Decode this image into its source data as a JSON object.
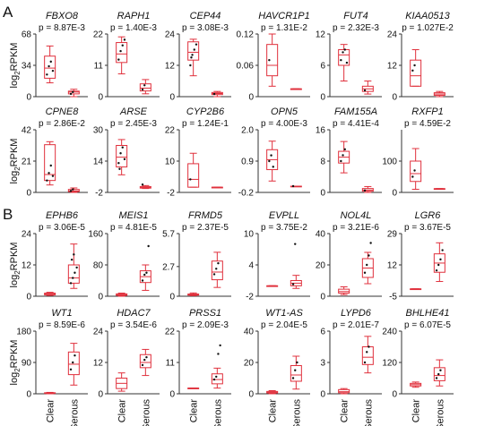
{
  "figure": {
    "panel_labels": [
      "A",
      "B"
    ],
    "ylabel": "log2RPKM",
    "ylabel_base": "log",
    "ylabel_sub": "2",
    "ylabel_tail": "RPKM",
    "group_labels": [
      "Clear",
      "Serous"
    ],
    "box_color": "#e0303c",
    "point_color": "#111111",
    "text_color": "#111111"
  },
  "chart_data": [
    {
      "type": "box",
      "gene": "FBXO8",
      "pvalue": "p = 8.87E-3",
      "ylim": [
        0,
        68
      ],
      "yticks": [
        "68",
        "34",
        "0"
      ],
      "boxes": [
        {
          "group": "Clear",
          "whisker_low": 15,
          "q1": 20,
          "median": 31,
          "q3": 44,
          "whisker_high": 55,
          "points": [
            24,
            33,
            38,
            28
          ]
        },
        {
          "group": "Serous",
          "whisker_low": 0,
          "q1": 3,
          "median": 5,
          "q3": 6,
          "whisker_high": 8,
          "points": [
            3,
            5
          ]
        }
      ]
    },
    {
      "type": "box",
      "gene": "RAPH1",
      "pvalue": "p = 1.40E-3",
      "ylim": [
        0,
        22
      ],
      "yticks": [
        "22",
        "11",
        "0"
      ],
      "boxes": [
        {
          "group": "Clear",
          "whisker_low": 8,
          "q1": 12,
          "median": 15,
          "q3": 19,
          "whisker_high": 21,
          "points": [
            13,
            16,
            18,
            20
          ]
        },
        {
          "group": "Serous",
          "whisker_low": 1,
          "q1": 2,
          "median": 3,
          "q3": 4.5,
          "whisker_high": 6,
          "points": [
            2.5,
            4
          ]
        }
      ]
    },
    {
      "type": "box",
      "gene": "CEP44",
      "pvalue": "p = 3.08E-3",
      "ylim": [
        0,
        24
      ],
      "yticks": [
        "24",
        "12",
        "0"
      ],
      "boxes": [
        {
          "group": "Clear",
          "whisker_low": 8,
          "q1": 14,
          "median": 17,
          "q3": 21,
          "whisker_high": 22,
          "points": [
            12,
            16,
            18,
            20,
            15
          ]
        },
        {
          "group": "Serous",
          "whisker_low": 0,
          "q1": 0.8,
          "median": 1.2,
          "q3": 1.6,
          "whisker_high": 2,
          "points": [
            1
          ]
        }
      ]
    },
    {
      "type": "box",
      "gene": "HAVCR1P1",
      "pvalue": "p = 1.31E-2",
      "ylim": [
        0,
        0.12
      ],
      "yticks": [
        "0.12",
        "0.06",
        "0"
      ],
      "boxes": [
        {
          "group": "Clear",
          "whisker_low": 0.02,
          "q1": 0.04,
          "median": 0.06,
          "q3": 0.1,
          "whisker_high": 0.12,
          "points": [
            0.07
          ]
        },
        {
          "group": "Serous",
          "whisker_low": 0.015,
          "q1": 0.015,
          "median": 0.015,
          "q3": 0.015,
          "whisker_high": 0.015,
          "points": []
        }
      ]
    },
    {
      "type": "box",
      "gene": "FUT4",
      "pvalue": "p = 2.32E-3",
      "ylim": [
        0,
        12
      ],
      "yticks": [
        "12",
        "6",
        "0"
      ],
      "boxes": [
        {
          "group": "Clear",
          "whisker_low": 3,
          "q1": 6,
          "median": 8,
          "q3": 9,
          "whisker_high": 10,
          "points": [
            7,
            8.5,
            9,
            6.5
          ]
        },
        {
          "group": "Serous",
          "whisker_low": 0.5,
          "q1": 1,
          "median": 1.5,
          "q3": 2,
          "whisker_high": 3,
          "points": [
            1.2
          ]
        }
      ]
    },
    {
      "type": "box",
      "gene": "KIAA0513",
      "pvalue": "p = 1.027E-2",
      "ylim": [
        0,
        24
      ],
      "yticks": [
        "24",
        "12",
        "0"
      ],
      "boxes": [
        {
          "group": "Clear",
          "whisker_low": 4,
          "q1": 4,
          "median": 8,
          "q3": 14,
          "whisker_high": 18,
          "points": [
            10,
            12
          ]
        },
        {
          "group": "Serous",
          "whisker_low": 0,
          "q1": 0.5,
          "median": 1,
          "q3": 1.5,
          "whisker_high": 2,
          "points": []
        }
      ]
    },
    {
      "type": "box",
      "gene": "CPNE8",
      "pvalue": "p = 2.86E-2",
      "ylim": [
        0,
        42
      ],
      "yticks": [
        "42",
        "21",
        "0"
      ],
      "boxes": [
        {
          "group": "Clear",
          "whisker_low": 5,
          "q1": 8,
          "median": 12,
          "q3": 32,
          "whisker_high": 34,
          "points": [
            8,
            13,
            18,
            11
          ]
        },
        {
          "group": "Serous",
          "whisker_low": 0,
          "q1": 0.5,
          "median": 1,
          "q3": 2,
          "whisker_high": 3,
          "points": [
            1,
            2
          ]
        }
      ]
    },
    {
      "type": "box",
      "gene": "ARSE",
      "pvalue": "p = 2.45E-3",
      "ylim": [
        -2,
        30
      ],
      "yticks": [
        "30",
        "14",
        "-2"
      ],
      "boxes": [
        {
          "group": "Clear",
          "whisker_low": 7,
          "q1": 11,
          "median": 16,
          "q3": 22,
          "whisker_high": 25,
          "points": [
            13,
            18,
            21,
            15,
            10
          ]
        },
        {
          "group": "Serous",
          "whisker_low": 0,
          "q1": 0.2,
          "median": 0.5,
          "q3": 1,
          "whisker_high": 1.5,
          "points": [
            2
          ]
        }
      ]
    },
    {
      "type": "box",
      "gene": "CYP2B6",
      "pvalue": "p = 1.24E-1",
      "ylim": [
        -2,
        22
      ],
      "yticks": [
        "22",
        "10",
        "-2"
      ],
      "boxes": [
        {
          "group": "Clear",
          "whisker_low": 0,
          "q1": 0,
          "median": 3,
          "q3": 9,
          "whisker_high": 13,
          "points": [
            3
          ]
        },
        {
          "group": "Serous",
          "whisker_low": 0,
          "q1": 0,
          "median": 0,
          "q3": 0,
          "whisker_high": 0,
          "points": []
        }
      ]
    },
    {
      "type": "box",
      "gene": "OPN5",
      "pvalue": "p = 4.00E-3",
      "ylim": [
        -0.2,
        2.0
      ],
      "yticks": [
        "2.0",
        "0.9",
        "-0.2"
      ],
      "boxes": [
        {
          "group": "Clear",
          "whisker_low": 0.2,
          "q1": 0.6,
          "median": 0.95,
          "q3": 1.3,
          "whisker_high": 1.6,
          "points": [
            0.9,
            1.1,
            0.7
          ]
        },
        {
          "group": "Serous",
          "whisker_low": 0.02,
          "q1": 0.02,
          "median": 0.02,
          "q3": 0.02,
          "whisker_high": 0.02,
          "points": [
            0.02
          ]
        }
      ]
    },
    {
      "type": "box",
      "gene": "FAM155A",
      "pvalue": "p = 4.41E-4",
      "ylim": [
        0,
        16
      ],
      "yticks": [
        "16",
        "8",
        "0"
      ],
      "boxes": [
        {
          "group": "Clear",
          "whisker_low": 5,
          "q1": 7.5,
          "median": 9,
          "q3": 10.5,
          "whisker_high": 13,
          "points": [
            8,
            9.5,
            11
          ]
        },
        {
          "group": "Serous",
          "whisker_low": 0,
          "q1": 0.3,
          "median": 0.6,
          "q3": 1,
          "whisker_high": 1.5,
          "points": [
            0.5
          ]
        }
      ]
    },
    {
      "type": "box",
      "gene": "RXFP1",
      "pvalue": "p = 4.59E-2",
      "ylim": [
        0,
        200
      ],
      "yticks": [
        "100",
        "0"
      ],
      "boxes": [
        {
          "group": "Clear",
          "whisker_low": 10,
          "q1": 35,
          "median": 60,
          "q3": 100,
          "whisker_high": 140,
          "points": [
            50,
            70
          ]
        },
        {
          "group": "Serous",
          "whisker_low": 12,
          "q1": 12,
          "median": 12,
          "q3": 12,
          "whisker_high": 12,
          "points": []
        }
      ]
    },
    {
      "type": "box",
      "gene": "EPHB6",
      "pvalue": "p = 3.06E-5",
      "ylim": [
        0,
        24
      ],
      "yticks": [
        "24",
        "12",
        "0"
      ],
      "boxes": [
        {
          "group": "Clear",
          "whisker_low": 0.3,
          "q1": 0.5,
          "median": 0.8,
          "q3": 1.2,
          "whisker_high": 1.5,
          "points": []
        },
        {
          "group": "Serous",
          "whisker_low": 3,
          "q1": 5,
          "median": 7,
          "q3": 12,
          "whisker_high": 20,
          "points": [
            5,
            7,
            9,
            11,
            14,
            16
          ]
        }
      ]
    },
    {
      "type": "box",
      "gene": "MEIS1",
      "pvalue": "p = 4.81E-5",
      "ylim": [
        0,
        160
      ],
      "yticks": [
        "160",
        "80",
        "0"
      ],
      "boxes": [
        {
          "group": "Clear",
          "whisker_low": 0,
          "q1": 2,
          "median": 4,
          "q3": 6,
          "whisker_high": 8,
          "points": []
        },
        {
          "group": "Serous",
          "whisker_low": 15,
          "q1": 35,
          "median": 50,
          "q3": 65,
          "whisker_high": 80,
          "points": [
            40,
            55,
            60,
            128
          ]
        }
      ]
    },
    {
      "type": "box",
      "gene": "FRMD5",
      "pvalue": "p = 2.37E-5",
      "ylim": [
        0,
        5.7
      ],
      "yticks": [
        "5.7",
        "2.7",
        "0"
      ],
      "boxes": [
        {
          "group": "Clear",
          "whisker_low": 0.05,
          "q1": 0.1,
          "median": 0.15,
          "q3": 0.2,
          "whisker_high": 0.3,
          "points": []
        },
        {
          "group": "Serous",
          "whisker_low": 0.8,
          "q1": 1.5,
          "median": 2.2,
          "q3": 3.2,
          "whisker_high": 4,
          "points": [
            2,
            2.5,
            3
          ]
        }
      ]
    },
    {
      "type": "box",
      "gene": "EVPLL",
      "pvalue": "p = 3.75E-2",
      "ylim": [
        -2,
        10
      ],
      "yticks": [
        "10",
        "4",
        "-2"
      ],
      "boxes": [
        {
          "group": "Clear",
          "whisker_low": 0,
          "q1": 0,
          "median": 0,
          "q3": 0,
          "whisker_high": 0,
          "points": []
        },
        {
          "group": "Serous",
          "whisker_low": -0.5,
          "q1": 0,
          "median": 0.5,
          "q3": 1,
          "whisker_high": 2,
          "points": [
            0.3,
            8
          ]
        }
      ]
    },
    {
      "type": "box",
      "gene": "NOL4L",
      "pvalue": "p = 3.21E-6",
      "ylim": [
        0,
        40
      ],
      "yticks": [
        "40",
        "20",
        "0"
      ],
      "boxes": [
        {
          "group": "Clear",
          "whisker_low": 1,
          "q1": 2,
          "median": 3,
          "q3": 4.5,
          "whisker_high": 6,
          "points": []
        },
        {
          "group": "Serous",
          "whisker_low": 8,
          "q1": 12,
          "median": 18,
          "q3": 24,
          "whisker_high": 28,
          "points": [
            15,
            20,
            26,
            34
          ]
        }
      ]
    },
    {
      "type": "box",
      "gene": "LGR6",
      "pvalue": "p = 3.67E-5",
      "ylim": [
        -5,
        29
      ],
      "yticks": [
        "29",
        "12",
        "-5"
      ],
      "boxes": [
        {
          "group": "Clear",
          "whisker_low": -1,
          "q1": -1,
          "median": -1,
          "q3": -1,
          "whisker_high": -1,
          "points": []
        },
        {
          "group": "Serous",
          "whisker_low": 3,
          "q1": 8,
          "median": 13,
          "q3": 18,
          "whisker_high": 24,
          "points": [
            9,
            12,
            15,
            20
          ]
        }
      ]
    },
    {
      "type": "box",
      "gene": "WT1",
      "pvalue": "p = 8.59E-6",
      "ylim": [
        0,
        180
      ],
      "yticks": [
        "180",
        "90",
        "0"
      ],
      "boxes": [
        {
          "group": "Clear",
          "whisker_low": 0,
          "q1": 1,
          "median": 2,
          "q3": 3,
          "whisker_high": 4,
          "points": []
        },
        {
          "group": "Serous",
          "whisker_low": 25,
          "q1": 55,
          "median": 85,
          "q3": 120,
          "whisker_high": 145,
          "points": [
            70,
            90,
            110
          ]
        }
      ]
    },
    {
      "type": "box",
      "gene": "HDAC7",
      "pvalue": "p = 3.54E-6",
      "ylim": [
        0,
        24
      ],
      "yticks": [
        "24",
        "12",
        "0"
      ],
      "boxes": [
        {
          "group": "Clear",
          "whisker_low": 1,
          "q1": 2,
          "median": 4,
          "q3": 6,
          "whisker_high": 8,
          "points": []
        },
        {
          "group": "Serous",
          "whisker_low": 7,
          "q1": 10,
          "median": 12,
          "q3": 15,
          "whisker_high": 17,
          "points": [
            11,
            13,
            14
          ]
        }
      ]
    },
    {
      "type": "box",
      "gene": "PRSS1",
      "pvalue": "p = 2.09E-3",
      "ylim": [
        0,
        22
      ],
      "yticks": [
        "22",
        "11",
        "0"
      ],
      "boxes": [
        {
          "group": "Clear",
          "whisker_low": 2,
          "q1": 2,
          "median": 2,
          "q3": 2,
          "whisker_high": 2,
          "points": []
        },
        {
          "group": "Serous",
          "whisker_low": 2,
          "q1": 3.5,
          "median": 5,
          "q3": 7,
          "whisker_high": 9,
          "points": [
            5,
            6,
            14,
            17
          ]
        }
      ]
    },
    {
      "type": "box",
      "gene": "WT1-AS",
      "pvalue": "p = 2.04E-5",
      "ylim": [
        0,
        40
      ],
      "yticks": [
        "40",
        "20",
        "0"
      ],
      "boxes": [
        {
          "group": "Clear",
          "whisker_low": 0,
          "q1": 0.5,
          "median": 1,
          "q3": 1.5,
          "whisker_high": 2,
          "points": []
        },
        {
          "group": "Serous",
          "whisker_low": 3,
          "q1": 8,
          "median": 12,
          "q3": 18,
          "whisker_high": 24,
          "points": [
            10,
            15,
            20
          ]
        }
      ]
    },
    {
      "type": "box",
      "gene": "LYPD6",
      "pvalue": "p = 2.01E-7",
      "ylim": [
        0,
        6
      ],
      "yticks": [
        "6",
        "3",
        "0"
      ],
      "boxes": [
        {
          "group": "Clear",
          "whisker_low": 0,
          "q1": 0.1,
          "median": 0.2,
          "q3": 0.4,
          "whisker_high": 0.5,
          "points": []
        },
        {
          "group": "Serous",
          "whisker_low": 2,
          "q1": 2.8,
          "median": 3.5,
          "q3": 4.5,
          "whisker_high": 5.5,
          "points": [
            3,
            4,
            4.5
          ]
        }
      ]
    },
    {
      "type": "box",
      "gene": "BHLHE41",
      "pvalue": "p = 6.07E-5",
      "ylim": [
        0,
        240
      ],
      "yticks": [
        "240",
        "120",
        "0"
      ],
      "boxes": [
        {
          "group": "Clear",
          "whisker_low": 25,
          "q1": 30,
          "median": 35,
          "q3": 40,
          "whisker_high": 45,
          "points": []
        },
        {
          "group": "Serous",
          "whisker_low": 30,
          "q1": 50,
          "median": 70,
          "q3": 100,
          "whisker_high": 130,
          "points": [
            60,
            75,
            90
          ]
        }
      ]
    }
  ]
}
